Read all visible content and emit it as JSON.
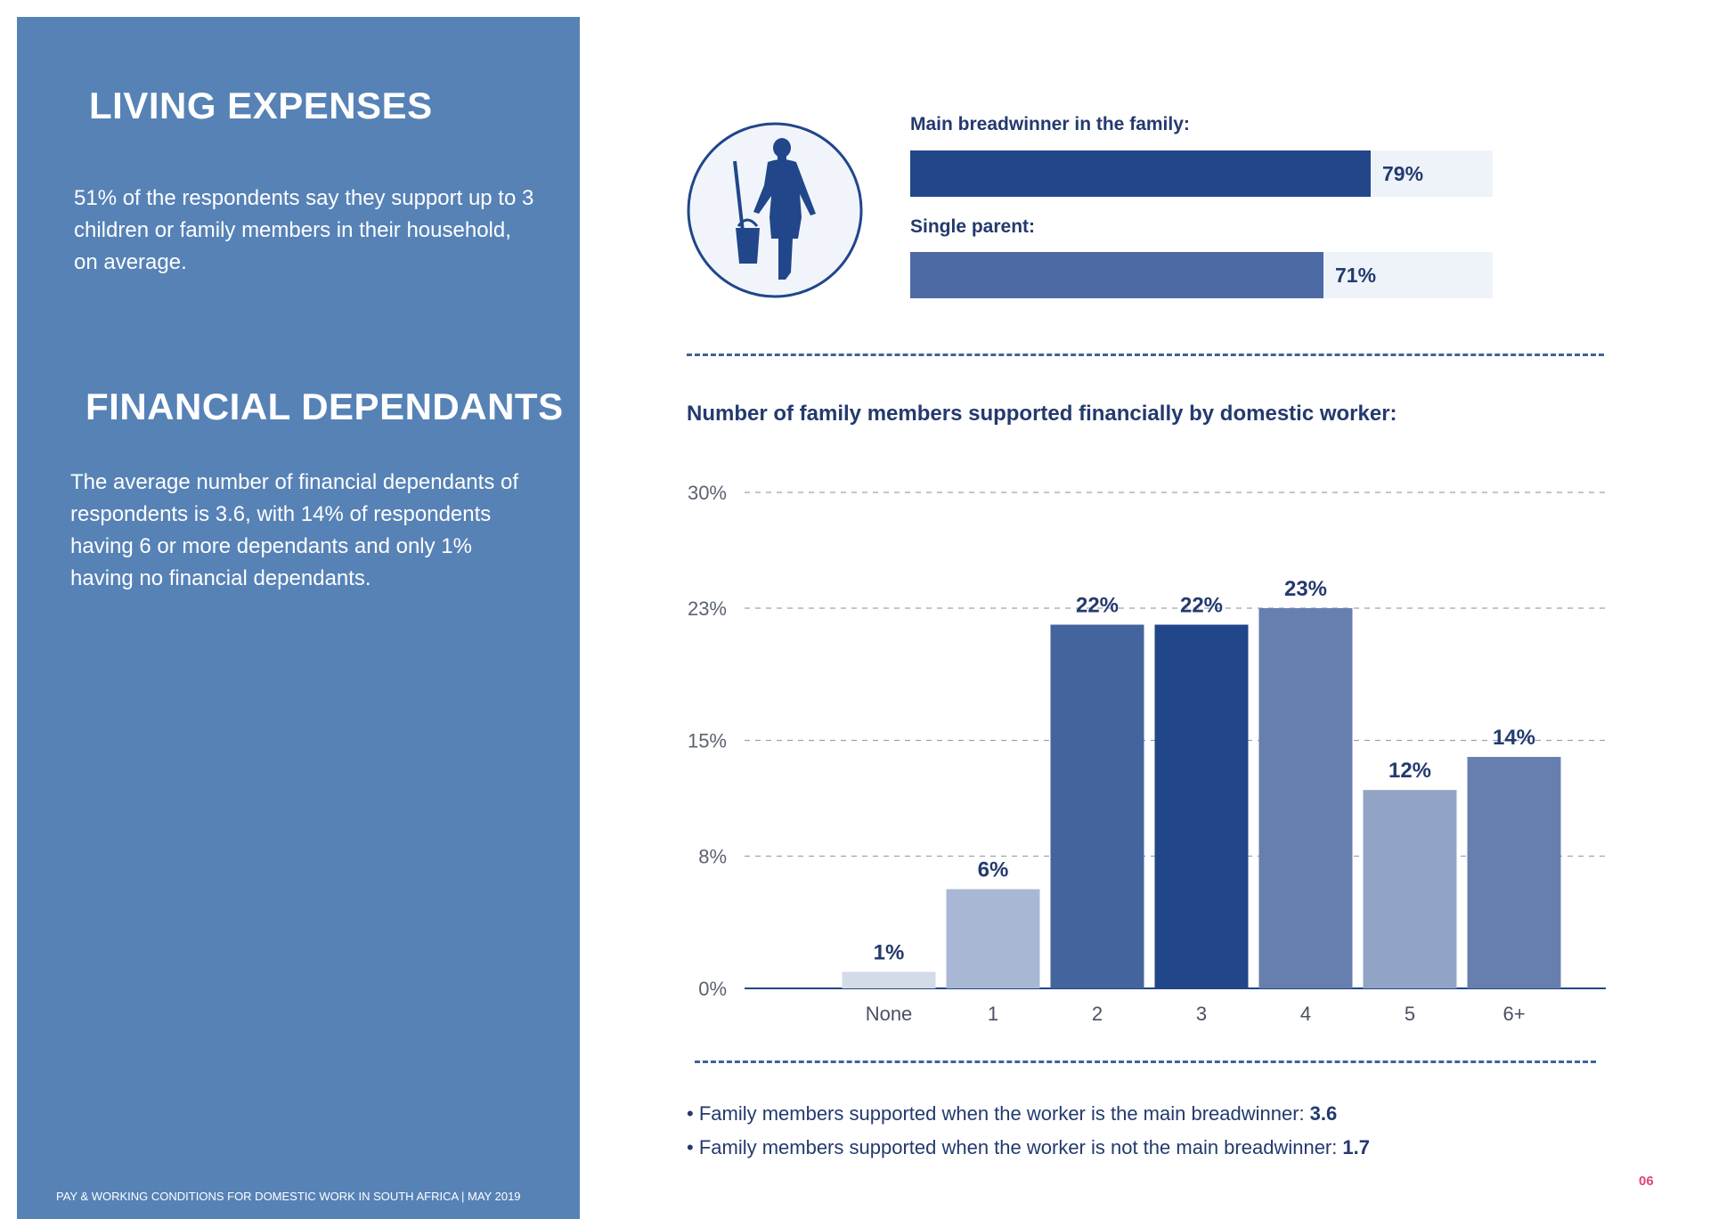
{
  "living": {
    "title": "LIVING EXPENSES",
    "text": "51% of the respondents say they support up to 3 children or family members in their household, on average."
  },
  "financial": {
    "title": "FINANCIAL DEPENDANTS",
    "text": "The average number of financial dependants of respondents is 3.6, with 14% of respondents having 6 or more dependants and only 1% having no financial dependants."
  },
  "footer": {
    "text": "PAY & WORKING CONDITIONS FOR DOMESTIC WORK IN SOUTH AFRICA  |  MAY 2019",
    "page": "06"
  },
  "icon": {
    "name": "domestic-worker-icon"
  },
  "hbars": [
    {
      "label": "Main breadwinner in the family:",
      "value": 79,
      "display": "79%",
      "color": "#21468a"
    },
    {
      "label": "Single parent:",
      "value": 71,
      "display": "71%",
      "color": "#4d6aa5"
    }
  ],
  "chart_data": {
    "type": "bar",
    "title": "Number of family members supported financially by domestic worker:",
    "categories": [
      "None",
      "1",
      "2",
      "3",
      "4",
      "5",
      "6+"
    ],
    "values": [
      1,
      6,
      22,
      22,
      23,
      12,
      14
    ],
    "labels": [
      "1%",
      "6%",
      "22%",
      "22%",
      "23%",
      "12%",
      "14%"
    ],
    "colors": [
      "#d3dbe8",
      "#a8b8d4",
      "#44649d",
      "#21468a",
      "#677fae",
      "#91a4c6",
      "#667fae"
    ],
    "ylim": [
      0,
      30
    ],
    "yticks": [
      0,
      8,
      15,
      23,
      30
    ],
    "ytick_labels": [
      "0%",
      "8%",
      "15%",
      "23%",
      "30%"
    ],
    "xlabel": "",
    "ylabel": "",
    "grid": true
  },
  "notes": [
    {
      "text": "• Family members supported when the worker is the main breadwinner:",
      "value": "3.6"
    },
    {
      "text": "• Family members supported when the worker is not the main breadwinner:",
      "value": "1.7"
    }
  ]
}
